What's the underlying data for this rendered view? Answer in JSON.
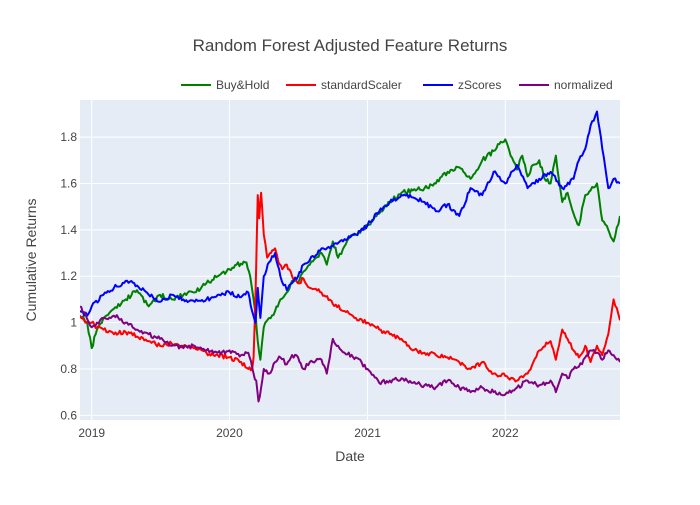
{
  "chart_data": {
    "type": "line",
    "title": "Random Forest Adjusted Feature Returns",
    "xlabel": "Date",
    "ylabel": "Cumulative Returns",
    "xlim": [
      "2018-12-01",
      "2022-11-01"
    ],
    "ylim": [
      0.58,
      1.96
    ],
    "x_ticks": [
      {
        "label": "2019",
        "date": "2019-01-01"
      },
      {
        "label": "2020",
        "date": "2020-01-01"
      },
      {
        "label": "2021",
        "date": "2021-01-01"
      },
      {
        "label": "2022",
        "date": "2022-01-01"
      }
    ],
    "y_ticks": [
      0.6,
      0.8,
      1,
      1.2,
      1.4,
      1.6,
      1.8
    ],
    "y_tick_labels": [
      "0.6",
      "0.8",
      "1",
      "1.2",
      "1.4",
      "1.6",
      "1.8"
    ],
    "legend_position": "top-right",
    "grid": true,
    "background": "#e5ecf6",
    "series": [
      {
        "name": "Buy&Hold",
        "color": "#008000",
        "x": [
          "2018-12-01",
          "2018-12-20",
          "2019-01-01",
          "2019-01-15",
          "2019-02-01",
          "2019-03-01",
          "2019-04-01",
          "2019-05-01",
          "2019-06-01",
          "2019-07-01",
          "2019-08-01",
          "2019-09-01",
          "2019-10-01",
          "2019-11-01",
          "2019-12-01",
          "2020-01-01",
          "2020-01-20",
          "2020-02-15",
          "2020-02-25",
          "2020-03-05",
          "2020-03-10",
          "2020-03-16",
          "2020-03-23",
          "2020-04-01",
          "2020-04-15",
          "2020-05-01",
          "2020-05-15",
          "2020-06-01",
          "2020-06-15",
          "2020-07-01",
          "2020-07-15",
          "2020-08-01",
          "2020-09-01",
          "2020-09-15",
          "2020-10-01",
          "2020-10-15",
          "2020-11-01",
          "2020-11-15",
          "2020-12-01",
          "2021-01-01",
          "2021-02-01",
          "2021-03-01",
          "2021-04-01",
          "2021-05-01",
          "2021-06-01",
          "2021-07-01",
          "2021-08-01",
          "2021-09-01",
          "2021-10-01",
          "2021-11-01",
          "2021-12-01",
          "2021-12-20",
          "2022-01-01",
          "2022-01-15",
          "2022-02-01",
          "2022-02-15",
          "2022-03-01",
          "2022-03-15",
          "2022-04-01",
          "2022-04-15",
          "2022-05-01",
          "2022-05-15",
          "2022-06-01",
          "2022-06-15",
          "2022-07-01",
          "2022-07-15",
          "2022-08-01",
          "2022-08-15",
          "2022-09-01",
          "2022-09-15",
          "2022-10-01",
          "2022-10-15",
          "2022-11-01"
        ],
        "y": [
          1.03,
          1.0,
          0.89,
          0.97,
          1.02,
          1.06,
          1.1,
          1.14,
          1.07,
          1.12,
          1.1,
          1.12,
          1.13,
          1.17,
          1.2,
          1.23,
          1.25,
          1.26,
          1.2,
          1.1,
          1.04,
          0.92,
          0.84,
          0.98,
          1.02,
          1.05,
          1.1,
          1.13,
          1.18,
          1.17,
          1.22,
          1.25,
          1.3,
          1.25,
          1.35,
          1.28,
          1.33,
          1.37,
          1.38,
          1.42,
          1.47,
          1.52,
          1.56,
          1.57,
          1.58,
          1.6,
          1.65,
          1.67,
          1.62,
          1.7,
          1.74,
          1.78,
          1.79,
          1.72,
          1.66,
          1.72,
          1.63,
          1.68,
          1.7,
          1.62,
          1.6,
          1.72,
          1.52,
          1.56,
          1.47,
          1.42,
          1.55,
          1.57,
          1.6,
          1.44,
          1.4,
          1.35,
          1.46
        ]
      },
      {
        "name": "standardScaler",
        "color": "#ff0000",
        "x": [
          "2018-12-01",
          "2018-12-15",
          "2019-01-01",
          "2019-01-15",
          "2019-02-01",
          "2019-03-01",
          "2019-04-01",
          "2019-05-01",
          "2019-06-01",
          "2019-07-01",
          "2019-08-01",
          "2019-09-01",
          "2019-10-01",
          "2019-11-01",
          "2019-12-01",
          "2020-01-01",
          "2020-02-01",
          "2020-02-20",
          "2020-03-01",
          "2020-03-05",
          "2020-03-08",
          "2020-03-12",
          "2020-03-16",
          "2020-03-20",
          "2020-03-25",
          "2020-04-01",
          "2020-04-10",
          "2020-04-20",
          "2020-05-01",
          "2020-05-10",
          "2020-05-20",
          "2020-06-01",
          "2020-06-15",
          "2020-07-01",
          "2020-07-15",
          "2020-08-01",
          "2020-09-01",
          "2020-10-01",
          "2020-11-01",
          "2020-12-01",
          "2021-01-01",
          "2021-02-01",
          "2021-03-01",
          "2021-04-01",
          "2021-05-01",
          "2021-06-01",
          "2021-07-01",
          "2021-08-01",
          "2021-09-01",
          "2021-10-01",
          "2021-11-01",
          "2021-12-01",
          "2022-01-01",
          "2022-02-01",
          "2022-03-01",
          "2022-04-01",
          "2022-05-01",
          "2022-05-15",
          "2022-06-01",
          "2022-06-15",
          "2022-07-01",
          "2022-07-15",
          "2022-08-01",
          "2022-08-15",
          "2022-09-01",
          "2022-09-15",
          "2022-10-01",
          "2022-10-15",
          "2022-11-01"
        ],
        "y": [
          1.03,
          1.0,
          1.0,
          0.98,
          0.97,
          0.95,
          0.96,
          0.94,
          0.92,
          0.9,
          0.91,
          0.9,
          0.89,
          0.87,
          0.86,
          0.85,
          0.83,
          0.8,
          0.8,
          0.85,
          1.0,
          1.25,
          1.55,
          1.45,
          1.56,
          1.38,
          1.28,
          1.3,
          1.32,
          1.26,
          1.23,
          1.25,
          1.2,
          1.17,
          1.19,
          1.15,
          1.13,
          1.08,
          1.05,
          1.02,
          1.0,
          0.97,
          0.95,
          0.93,
          0.88,
          0.87,
          0.86,
          0.85,
          0.83,
          0.8,
          0.83,
          0.78,
          0.77,
          0.75,
          0.78,
          0.88,
          0.92,
          0.84,
          0.97,
          0.93,
          0.88,
          0.85,
          0.9,
          0.83,
          0.9,
          0.86,
          0.95,
          1.1,
          1.01
        ]
      },
      {
        "name": "zScores",
        "color": "#0000ff",
        "x": [
          "2018-12-01",
          "2018-12-20",
          "2019-01-01",
          "2019-02-01",
          "2019-03-01",
          "2019-04-01",
          "2019-05-01",
          "2019-06-01",
          "2019-07-01",
          "2019-08-01",
          "2019-09-01",
          "2019-10-01",
          "2019-11-01",
          "2019-12-01",
          "2020-01-01",
          "2020-02-01",
          "2020-02-20",
          "2020-03-01",
          "2020-03-10",
          "2020-03-16",
          "2020-03-23",
          "2020-04-01",
          "2020-04-15",
          "2020-05-01",
          "2020-05-15",
          "2020-06-01",
          "2020-06-15",
          "2020-07-01",
          "2020-07-15",
          "2020-08-01",
          "2020-09-01",
          "2020-10-01",
          "2020-11-01",
          "2020-12-01",
          "2021-01-01",
          "2021-02-01",
          "2021-03-01",
          "2021-04-01",
          "2021-05-01",
          "2021-06-01",
          "2021-07-01",
          "2021-08-01",
          "2021-09-01",
          "2021-10-01",
          "2021-11-01",
          "2021-12-01",
          "2022-01-01",
          "2022-02-01",
          "2022-03-01",
          "2022-04-01",
          "2022-05-01",
          "2022-06-01",
          "2022-07-01",
          "2022-07-15",
          "2022-08-01",
          "2022-08-15",
          "2022-09-01",
          "2022-09-15",
          "2022-10-01",
          "2022-10-15",
          "2022-11-01"
        ],
        "y": [
          1.05,
          1.03,
          1.07,
          1.12,
          1.15,
          1.18,
          1.16,
          1.12,
          1.09,
          1.12,
          1.1,
          1.09,
          1.1,
          1.12,
          1.13,
          1.11,
          1.13,
          1.05,
          1.0,
          1.15,
          1.02,
          1.2,
          1.26,
          1.3,
          1.2,
          1.14,
          1.17,
          1.2,
          1.25,
          1.27,
          1.32,
          1.33,
          1.36,
          1.38,
          1.42,
          1.48,
          1.52,
          1.55,
          1.54,
          1.52,
          1.48,
          1.51,
          1.46,
          1.58,
          1.55,
          1.65,
          1.6,
          1.68,
          1.58,
          1.62,
          1.65,
          1.58,
          1.62,
          1.7,
          1.75,
          1.85,
          1.91,
          1.75,
          1.58,
          1.62,
          1.6
        ]
      },
      {
        "name": "normalized",
        "color": "#800080",
        "x": [
          "2018-12-01",
          "2018-12-15",
          "2019-01-01",
          "2019-01-15",
          "2019-02-01",
          "2019-03-01",
          "2019-04-01",
          "2019-05-01",
          "2019-06-01",
          "2019-07-01",
          "2019-08-01",
          "2019-09-01",
          "2019-10-01",
          "2019-11-01",
          "2019-12-01",
          "2020-01-01",
          "2020-02-01",
          "2020-02-20",
          "2020-03-05",
          "2020-03-12",
          "2020-03-18",
          "2020-03-25",
          "2020-04-01",
          "2020-04-15",
          "2020-05-01",
          "2020-05-15",
          "2020-06-01",
          "2020-06-15",
          "2020-07-01",
          "2020-07-15",
          "2020-08-01",
          "2020-09-01",
          "2020-09-15",
          "2020-10-01",
          "2020-10-15",
          "2020-11-01",
          "2020-12-01",
          "2021-01-01",
          "2021-02-01",
          "2021-03-01",
          "2021-04-01",
          "2021-05-01",
          "2021-06-01",
          "2021-07-01",
          "2021-08-01",
          "2021-09-01",
          "2021-10-01",
          "2021-11-01",
          "2021-12-01",
          "2022-01-01",
          "2022-02-01",
          "2022-03-01",
          "2022-04-01",
          "2022-05-01",
          "2022-05-15",
          "2022-06-01",
          "2022-06-15",
          "2022-07-01",
          "2022-07-15",
          "2022-08-01",
          "2022-08-15",
          "2022-09-01",
          "2022-09-15",
          "2022-10-01",
          "2022-10-15",
          "2022-11-01"
        ],
        "y": [
          1.07,
          1.04,
          0.98,
          1.0,
          1.02,
          1.03,
          1.0,
          0.97,
          0.95,
          0.93,
          0.9,
          0.89,
          0.9,
          0.88,
          0.87,
          0.88,
          0.86,
          0.87,
          0.78,
          0.75,
          0.66,
          0.72,
          0.8,
          0.78,
          0.83,
          0.85,
          0.82,
          0.86,
          0.85,
          0.8,
          0.83,
          0.84,
          0.78,
          0.93,
          0.9,
          0.87,
          0.85,
          0.8,
          0.74,
          0.75,
          0.76,
          0.74,
          0.73,
          0.72,
          0.75,
          0.72,
          0.7,
          0.72,
          0.7,
          0.69,
          0.72,
          0.75,
          0.73,
          0.75,
          0.7,
          0.78,
          0.76,
          0.8,
          0.81,
          0.85,
          0.88,
          0.87,
          0.84,
          0.88,
          0.86,
          0.83
        ]
      }
    ]
  }
}
